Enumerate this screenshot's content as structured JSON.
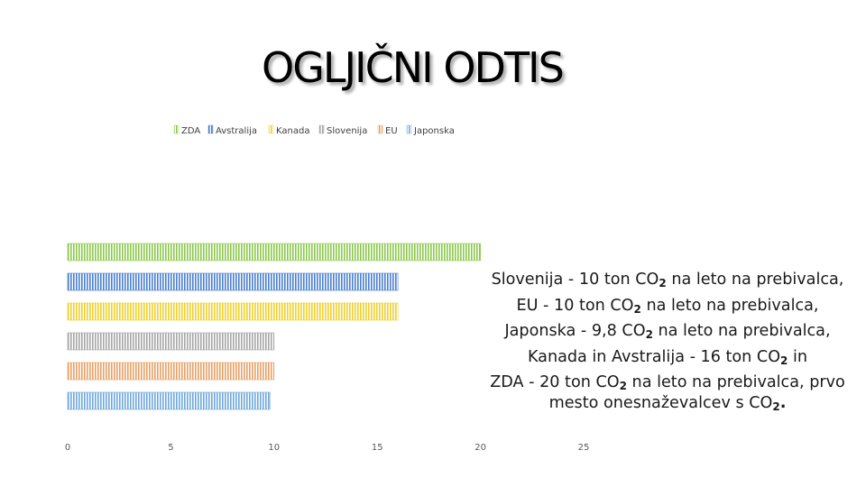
{
  "title": "OGLJIČNI ODTIS",
  "chart_data": {
    "type": "bar",
    "orientation": "horizontal",
    "title": "OGLJIČNI ODTIS",
    "categories": [
      "ZDA",
      "Avstralija",
      "Kanada",
      "Slovenija",
      "EU",
      "Japonska"
    ],
    "series": [
      {
        "name": "ZDA",
        "value": 20,
        "color": "#8cc84b"
      },
      {
        "name": "Avstralija",
        "value": 16,
        "color": "#4a7fd0"
      },
      {
        "name": "Kanada",
        "value": 16,
        "color": "#f0d02c"
      },
      {
        "name": "Slovenija",
        "value": 10,
        "color": "#a6a6a6"
      },
      {
        "name": "EU",
        "value": 10,
        "color": "#e8a064"
      },
      {
        "name": "Japonska",
        "value": 9.8,
        "color": "#6fa8dc"
      }
    ],
    "xlim": [
      0,
      25
    ],
    "xticks": [
      "0",
      "5",
      "10",
      "15",
      "20",
      "25"
    ],
    "legend_position": "top",
    "grid": false,
    "pattern": "vertical-hatch"
  },
  "caption": {
    "lines": [
      {
        "pre": "Slovenija - 10 ton CO",
        "sub": "2",
        "post": " na leto na prebivalca,"
      },
      {
        "pre": "EU - 10 ton CO",
        "sub": "2",
        "post": " na leto na prebivalca,"
      },
      {
        "pre": "Japonska - 9,8 CO",
        "sub": "2",
        "post": " na leto na prebivalca,"
      },
      {
        "pre": "Kanada in Avstralija - 16 ton CO",
        "sub": "2",
        "post": " in"
      },
      {
        "pre": "ZDA - 20 ton CO",
        "sub": "2",
        "post": " na leto na prebivalca, prvo"
      },
      {
        "pre": "mesto onesnaževalcev s CO",
        "sub": "2",
        "post": "."
      }
    ]
  }
}
